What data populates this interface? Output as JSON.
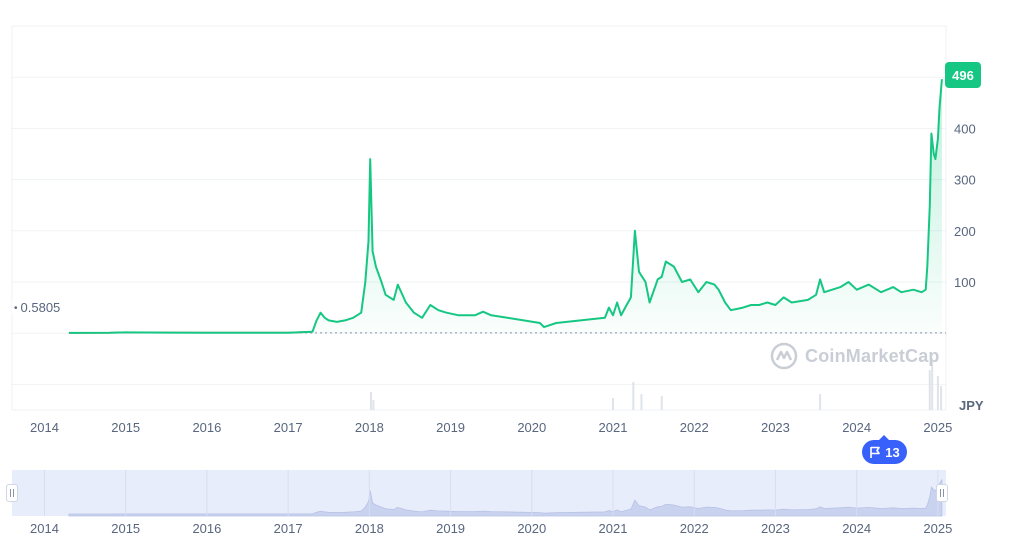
{
  "chart_data": {
    "type": "line",
    "currency": "JPY",
    "title": "",
    "xlabel": "",
    "ylabel": "",
    "y_ticks": [
      100,
      200,
      300,
      400
    ],
    "y_tick_labels": [
      "100",
      "200",
      "300",
      "400"
    ],
    "ylim": [
      -150,
      600
    ],
    "x_ticks": [
      2014,
      2015,
      2016,
      2017,
      2018,
      2019,
      2020,
      2021,
      2022,
      2023,
      2024,
      2025
    ],
    "x_tick_labels": [
      "2014",
      "2015",
      "2016",
      "2017",
      "2018",
      "2019",
      "2020",
      "2021",
      "2022",
      "2023",
      "2024",
      "2025"
    ],
    "xlim": [
      2013.6,
      2025.1
    ],
    "start_price": 0.5805,
    "start_price_label": "0.5805",
    "current_price": 496,
    "current_price_label": "496",
    "grid": true,
    "series": [
      {
        "color": "#16c784",
        "points": [
          [
            2014.3,
            0.6
          ],
          [
            2014.8,
            0.7
          ],
          [
            2015.0,
            1.5
          ],
          [
            2015.5,
            1.2
          ],
          [
            2016.0,
            1.0
          ],
          [
            2016.5,
            0.9
          ],
          [
            2017.0,
            1.0
          ],
          [
            2017.3,
            3
          ],
          [
            2017.35,
            25
          ],
          [
            2017.4,
            40
          ],
          [
            2017.45,
            30
          ],
          [
            2017.5,
            25
          ],
          [
            2017.6,
            22
          ],
          [
            2017.7,
            25
          ],
          [
            2017.8,
            30
          ],
          [
            2017.9,
            40
          ],
          [
            2017.95,
            100
          ],
          [
            2017.99,
            180
          ],
          [
            2018.01,
            340
          ],
          [
            2018.04,
            160
          ],
          [
            2018.08,
            130
          ],
          [
            2018.15,
            100
          ],
          [
            2018.2,
            75
          ],
          [
            2018.3,
            65
          ],
          [
            2018.35,
            95
          ],
          [
            2018.45,
            60
          ],
          [
            2018.55,
            40
          ],
          [
            2018.65,
            30
          ],
          [
            2018.75,
            55
          ],
          [
            2018.85,
            45
          ],
          [
            2018.95,
            40
          ],
          [
            2019.1,
            35
          ],
          [
            2019.3,
            35
          ],
          [
            2019.4,
            42
          ],
          [
            2019.5,
            35
          ],
          [
            2019.7,
            30
          ],
          [
            2019.9,
            25
          ],
          [
            2020.1,
            20
          ],
          [
            2020.15,
            12
          ],
          [
            2020.3,
            20
          ],
          [
            2020.6,
            25
          ],
          [
            2020.9,
            30
          ],
          [
            2020.95,
            50
          ],
          [
            2021.0,
            35
          ],
          [
            2021.05,
            60
          ],
          [
            2021.1,
            35
          ],
          [
            2021.15,
            50
          ],
          [
            2021.22,
            70
          ],
          [
            2021.27,
            200
          ],
          [
            2021.32,
            120
          ],
          [
            2021.4,
            100
          ],
          [
            2021.45,
            60
          ],
          [
            2021.55,
            105
          ],
          [
            2021.6,
            110
          ],
          [
            2021.65,
            140
          ],
          [
            2021.75,
            130
          ],
          [
            2021.85,
            100
          ],
          [
            2021.95,
            105
          ],
          [
            2022.05,
            80
          ],
          [
            2022.15,
            100
          ],
          [
            2022.25,
            95
          ],
          [
            2022.3,
            85
          ],
          [
            2022.38,
            60
          ],
          [
            2022.45,
            45
          ],
          [
            2022.6,
            50
          ],
          [
            2022.7,
            55
          ],
          [
            2022.8,
            55
          ],
          [
            2022.9,
            60
          ],
          [
            2023.0,
            55
          ],
          [
            2023.1,
            70
          ],
          [
            2023.2,
            60
          ],
          [
            2023.4,
            65
          ],
          [
            2023.5,
            75
          ],
          [
            2023.55,
            105
          ],
          [
            2023.6,
            80
          ],
          [
            2023.8,
            90
          ],
          [
            2023.9,
            100
          ],
          [
            2024.0,
            85
          ],
          [
            2024.15,
            95
          ],
          [
            2024.3,
            80
          ],
          [
            2024.45,
            90
          ],
          [
            2024.55,
            80
          ],
          [
            2024.7,
            85
          ],
          [
            2024.8,
            80
          ],
          [
            2024.85,
            85
          ],
          [
            2024.87,
            130
          ],
          [
            2024.9,
            250
          ],
          [
            2024.92,
            390
          ],
          [
            2024.95,
            350
          ],
          [
            2024.97,
            340
          ],
          [
            2025.0,
            380
          ],
          [
            2025.02,
            440
          ],
          [
            2025.05,
            496
          ]
        ],
        "volume": [
          [
            2018.02,
            18
          ],
          [
            2018.05,
            10
          ],
          [
            2021.0,
            12
          ],
          [
            2021.25,
            28
          ],
          [
            2021.35,
            16
          ],
          [
            2021.6,
            14
          ],
          [
            2023.55,
            16
          ],
          [
            2024.9,
            40
          ],
          [
            2024.93,
            50
          ],
          [
            2025.0,
            34
          ],
          [
            2025.04,
            24
          ]
        ]
      }
    ]
  },
  "navigator": {
    "x_tick_labels": [
      "2014",
      "2015",
      "2016",
      "2017",
      "2018",
      "2019",
      "2020",
      "2021",
      "2022",
      "2023",
      "2024",
      "2025"
    ]
  },
  "watermark": "CoinMarketCap",
  "flag_badge": "13",
  "colors": {
    "line": "#16c784",
    "price_tag": "#16c784",
    "badge": "#3861fb",
    "grid": "#eff2f5",
    "navigator_bg": "#e8edfb",
    "red_segment": "#ea3943"
  }
}
